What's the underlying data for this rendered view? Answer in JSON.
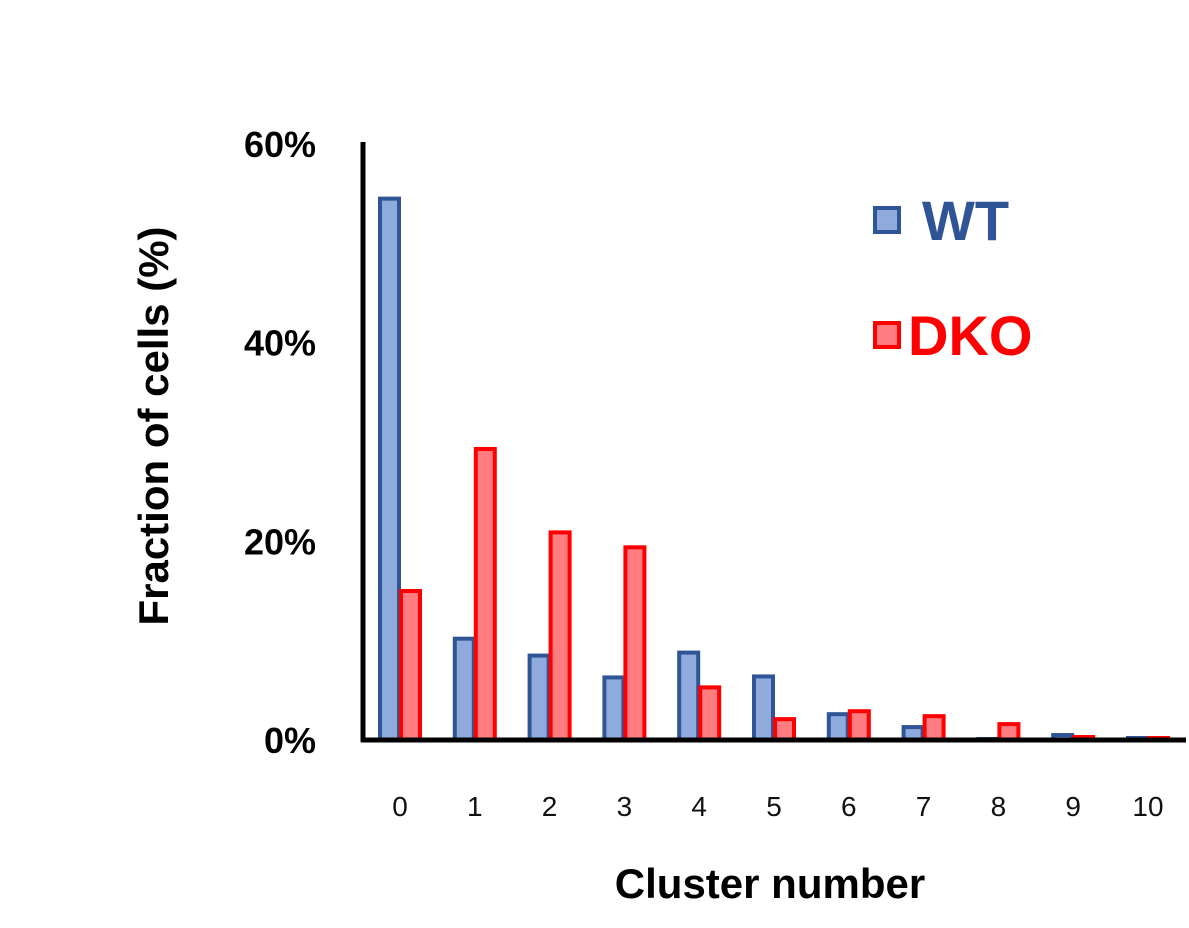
{
  "chart_data": {
    "type": "bar",
    "xlabel": "Cluster number",
    "ylabel": "Fraction of cells (%)",
    "ylim": [
      0,
      60
    ],
    "yticks": [
      "0%",
      "20%",
      "40%",
      "60%"
    ],
    "ytick_values": [
      0,
      20,
      40,
      60
    ],
    "categories": [
      "0",
      "1",
      "2",
      "3",
      "4",
      "5",
      "6",
      "7",
      "8",
      "9",
      "10"
    ],
    "grid": false,
    "legend_position": "top-right",
    "series": [
      {
        "name": "WT",
        "stroke": "#2F5597",
        "fill": "#8FAADC",
        "values": [
          54.5,
          10.2,
          8.5,
          6.3,
          8.8,
          6.4,
          2.6,
          1.3,
          0.1,
          0.5,
          0.2
        ]
      },
      {
        "name": "DKO",
        "stroke": "#FF0000",
        "fill": "#FF7C80",
        "values": [
          15.0,
          29.3,
          20.9,
          19.4,
          5.3,
          2.1,
          2.9,
          2.4,
          1.6,
          0.3,
          0.2
        ]
      }
    ]
  }
}
